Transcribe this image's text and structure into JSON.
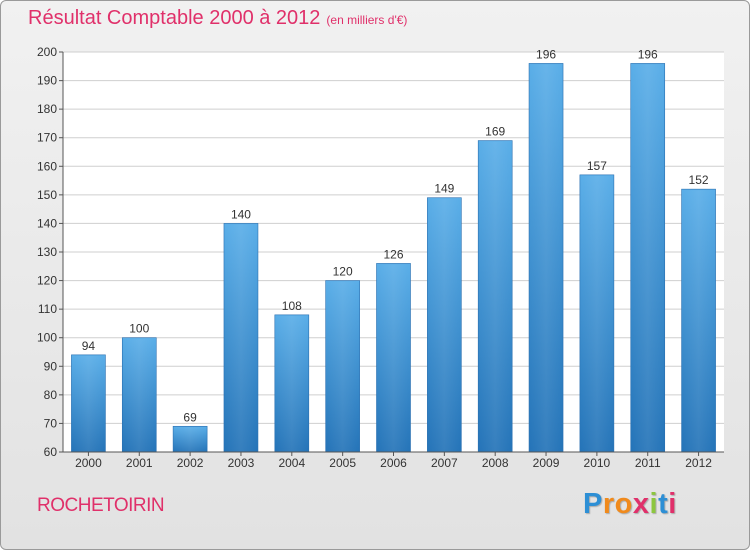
{
  "chart_data": {
    "type": "bar",
    "title": "Résultat Comptable 2000 à 2012",
    "subtitle": "(en milliers d'€)",
    "categories": [
      "2000",
      "2001",
      "2002",
      "2003",
      "2004",
      "2005",
      "2006",
      "2007",
      "2008",
      "2009",
      "2010",
      "2011",
      "2012"
    ],
    "values": [
      94,
      100,
      69,
      140,
      108,
      120,
      126,
      149,
      169,
      196,
      157,
      196,
      152
    ],
    "ylim": [
      60,
      200
    ],
    "yticks": [
      60,
      70,
      80,
      90,
      100,
      110,
      120,
      130,
      140,
      150,
      160,
      170,
      180,
      190,
      200
    ],
    "xlabel": "",
    "ylabel": "",
    "grid": true,
    "bar_color": "#3a8fd8"
  },
  "commune": "ROCHETOIRIN",
  "logo": {
    "letters": [
      "P",
      "r",
      "o",
      "x",
      "i",
      "t",
      "i"
    ],
    "colors": [
      "#2d8fd5",
      "#f08a1c",
      "#f08a1c",
      "#e0306a",
      "#8cc63f",
      "#2d8fd5",
      "#e0306a"
    ]
  }
}
